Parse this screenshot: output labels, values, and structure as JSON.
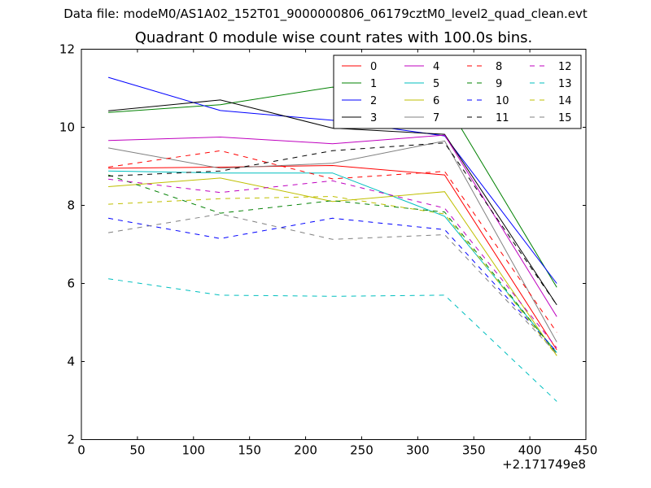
{
  "figure": {
    "suptitle": "Data file: modeM0/AS1A02_152T01_9000000806_06179cztM0_level2_quad_clean.evt",
    "title": "Quadrant 0 module wise count rates with 100.0s bins.",
    "x_offset_label": "+2.171749e8"
  },
  "chart_data": {
    "type": "line",
    "title": "Quadrant 0 module wise count rates with 100.0s bins.",
    "xlabel": "",
    "ylabel": "",
    "x_offset": "+2.171749e8",
    "xlim": [
      0,
      450
    ],
    "ylim": [
      2,
      12
    ],
    "xticks": [
      0,
      50,
      100,
      150,
      200,
      250,
      300,
      350,
      400,
      450
    ],
    "yticks": [
      2,
      4,
      6,
      8,
      10,
      12
    ],
    "grid": false,
    "legend_position": "top-right",
    "legend_columns": 4,
    "x": [
      24,
      124,
      224,
      324,
      424
    ],
    "series": [
      {
        "name": "0",
        "color": "#ff0000",
        "dash": "solid",
        "values": [
          8.95,
          8.98,
          9.02,
          8.78,
          4.3
        ]
      },
      {
        "name": "1",
        "color": "#008000",
        "dash": "solid",
        "values": [
          10.38,
          10.58,
          11.03,
          10.68,
          5.9
        ]
      },
      {
        "name": "2",
        "color": "#0000ff",
        "dash": "solid",
        "values": [
          11.28,
          10.43,
          10.18,
          9.78,
          6.0
        ]
      },
      {
        "name": "3",
        "color": "#000000",
        "dash": "solid",
        "values": [
          10.42,
          10.7,
          9.98,
          9.82,
          5.45
        ]
      },
      {
        "name": "4",
        "color": "#bf00bf",
        "dash": "solid",
        "values": [
          9.66,
          9.75,
          9.58,
          9.8,
          5.15
        ]
      },
      {
        "name": "5",
        "color": "#00bfbf",
        "dash": "solid",
        "values": [
          8.88,
          8.83,
          8.83,
          7.72,
          4.23
        ]
      },
      {
        "name": "6",
        "color": "#bfbf00",
        "dash": "solid",
        "values": [
          8.48,
          8.7,
          8.1,
          8.35,
          4.15
        ]
      },
      {
        "name": "7",
        "color": "#808080",
        "dash": "solid",
        "values": [
          9.47,
          8.95,
          9.08,
          9.65,
          4.5
        ]
      },
      {
        "name": "8",
        "color": "#ff0000",
        "dash": "dashed",
        "values": [
          8.98,
          9.4,
          8.68,
          8.87,
          4.75
        ]
      },
      {
        "name": "9",
        "color": "#008000",
        "dash": "dashed",
        "values": [
          8.78,
          7.8,
          8.12,
          7.83,
          4.2
        ]
      },
      {
        "name": "10",
        "color": "#0000ff",
        "dash": "dashed",
        "values": [
          7.67,
          7.15,
          7.67,
          7.38,
          4.25
        ]
      },
      {
        "name": "11",
        "color": "#000000",
        "dash": "dashed",
        "values": [
          8.75,
          8.88,
          9.4,
          9.6,
          5.45
        ]
      },
      {
        "name": "12",
        "color": "#bf00bf",
        "dash": "dashed",
        "values": [
          8.67,
          8.33,
          8.63,
          7.93,
          4.35
        ]
      },
      {
        "name": "13",
        "color": "#00bfbf",
        "dash": "dashed",
        "values": [
          6.12,
          5.7,
          5.67,
          5.7,
          2.98
        ]
      },
      {
        "name": "14",
        "color": "#bfbf00",
        "dash": "dashed",
        "values": [
          8.03,
          8.17,
          8.23,
          7.78,
          4.15
        ]
      },
      {
        "name": "15",
        "color": "#808080",
        "dash": "dashed",
        "values": [
          7.3,
          7.78,
          7.13,
          7.25,
          4.2
        ]
      }
    ]
  }
}
